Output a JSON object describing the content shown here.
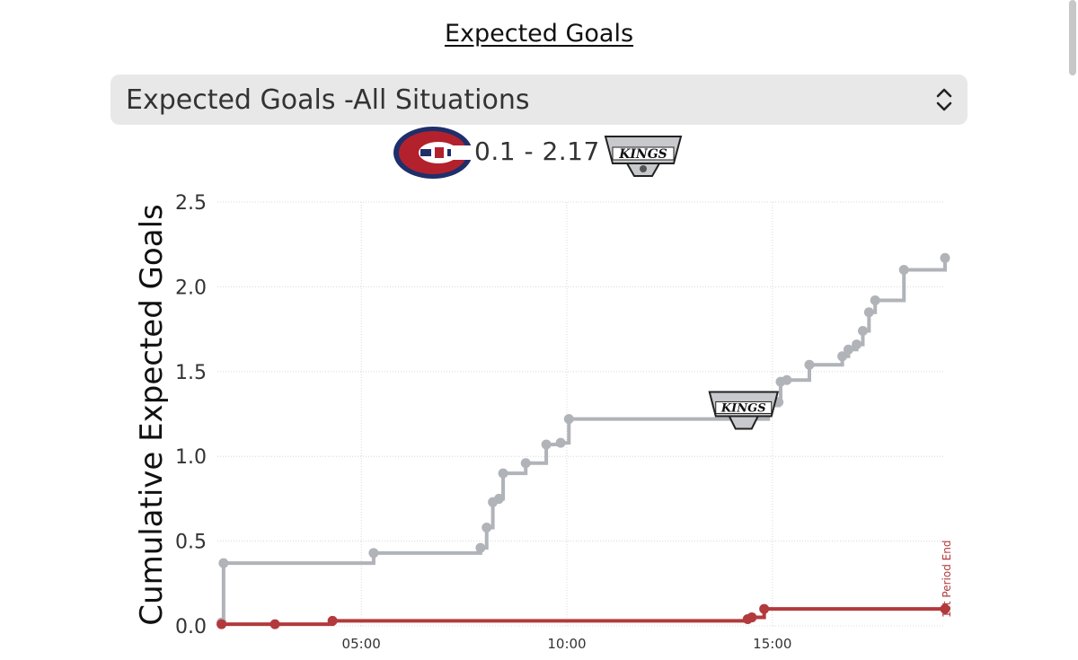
{
  "page": {
    "title": "Expected Goals"
  },
  "selector": {
    "value": "Expected Goals -All Situations"
  },
  "score": {
    "home": "0.1",
    "away": "2.17",
    "separator": "-",
    "home_team": "Montreal Canadiens",
    "away_team": "Los Angeles Kings"
  },
  "colors": {
    "home": "#b23a3c",
    "away": "#b0b3b8",
    "grid": "#d8d8d8"
  },
  "chart_data": {
    "type": "line",
    "step": true,
    "ylabel": "Cumulative Expected Goals",
    "xlabel": "",
    "xlim": [
      1.5,
      19.2
    ],
    "ylim": [
      0,
      2.5
    ],
    "x_ticks": [
      5,
      10,
      15
    ],
    "x_tick_labels": [
      "05:00",
      "10:00",
      "15:00"
    ],
    "y_ticks": [
      0,
      0.5,
      1,
      1.5,
      2,
      2.5
    ],
    "y_tick_labels": [
      "0.0",
      "0.5",
      "1.0",
      "1.5",
      "2.0",
      "2.5"
    ],
    "annotation": {
      "text": "1st Period End",
      "x": 19.2
    },
    "series": [
      {
        "name": "Los Angeles Kings",
        "color": "#b0b3b8",
        "points": [
          [
            1.6,
            0.02
          ],
          [
            1.65,
            0.37
          ],
          [
            5.3,
            0.43
          ],
          [
            7.9,
            0.46
          ],
          [
            8.05,
            0.58
          ],
          [
            8.2,
            0.73
          ],
          [
            8.35,
            0.75
          ],
          [
            8.45,
            0.9
          ],
          [
            9.0,
            0.96
          ],
          [
            9.5,
            1.07
          ],
          [
            9.85,
            1.08
          ],
          [
            10.05,
            1.22
          ],
          [
            14.9,
            1.3
          ],
          [
            15.15,
            1.32
          ],
          [
            15.2,
            1.44
          ],
          [
            15.35,
            1.45
          ],
          [
            15.9,
            1.54
          ],
          [
            16.7,
            1.59
          ],
          [
            16.85,
            1.63
          ],
          [
            17.05,
            1.66
          ],
          [
            17.2,
            1.74
          ],
          [
            17.35,
            1.85
          ],
          [
            17.5,
            1.92
          ],
          [
            18.2,
            2.1
          ],
          [
            19.2,
            2.17
          ]
        ],
        "logo_at": {
          "x": 14.3,
          "y": 1.29
        }
      },
      {
        "name": "Montreal Canadiens",
        "color": "#b23a3c",
        "points": [
          [
            1.6,
            0.01
          ],
          [
            2.9,
            0.01
          ],
          [
            4.3,
            0.03
          ],
          [
            14.4,
            0.04
          ],
          [
            14.5,
            0.05
          ],
          [
            14.8,
            0.1
          ],
          [
            19.2,
            0.1
          ]
        ]
      }
    ]
  }
}
